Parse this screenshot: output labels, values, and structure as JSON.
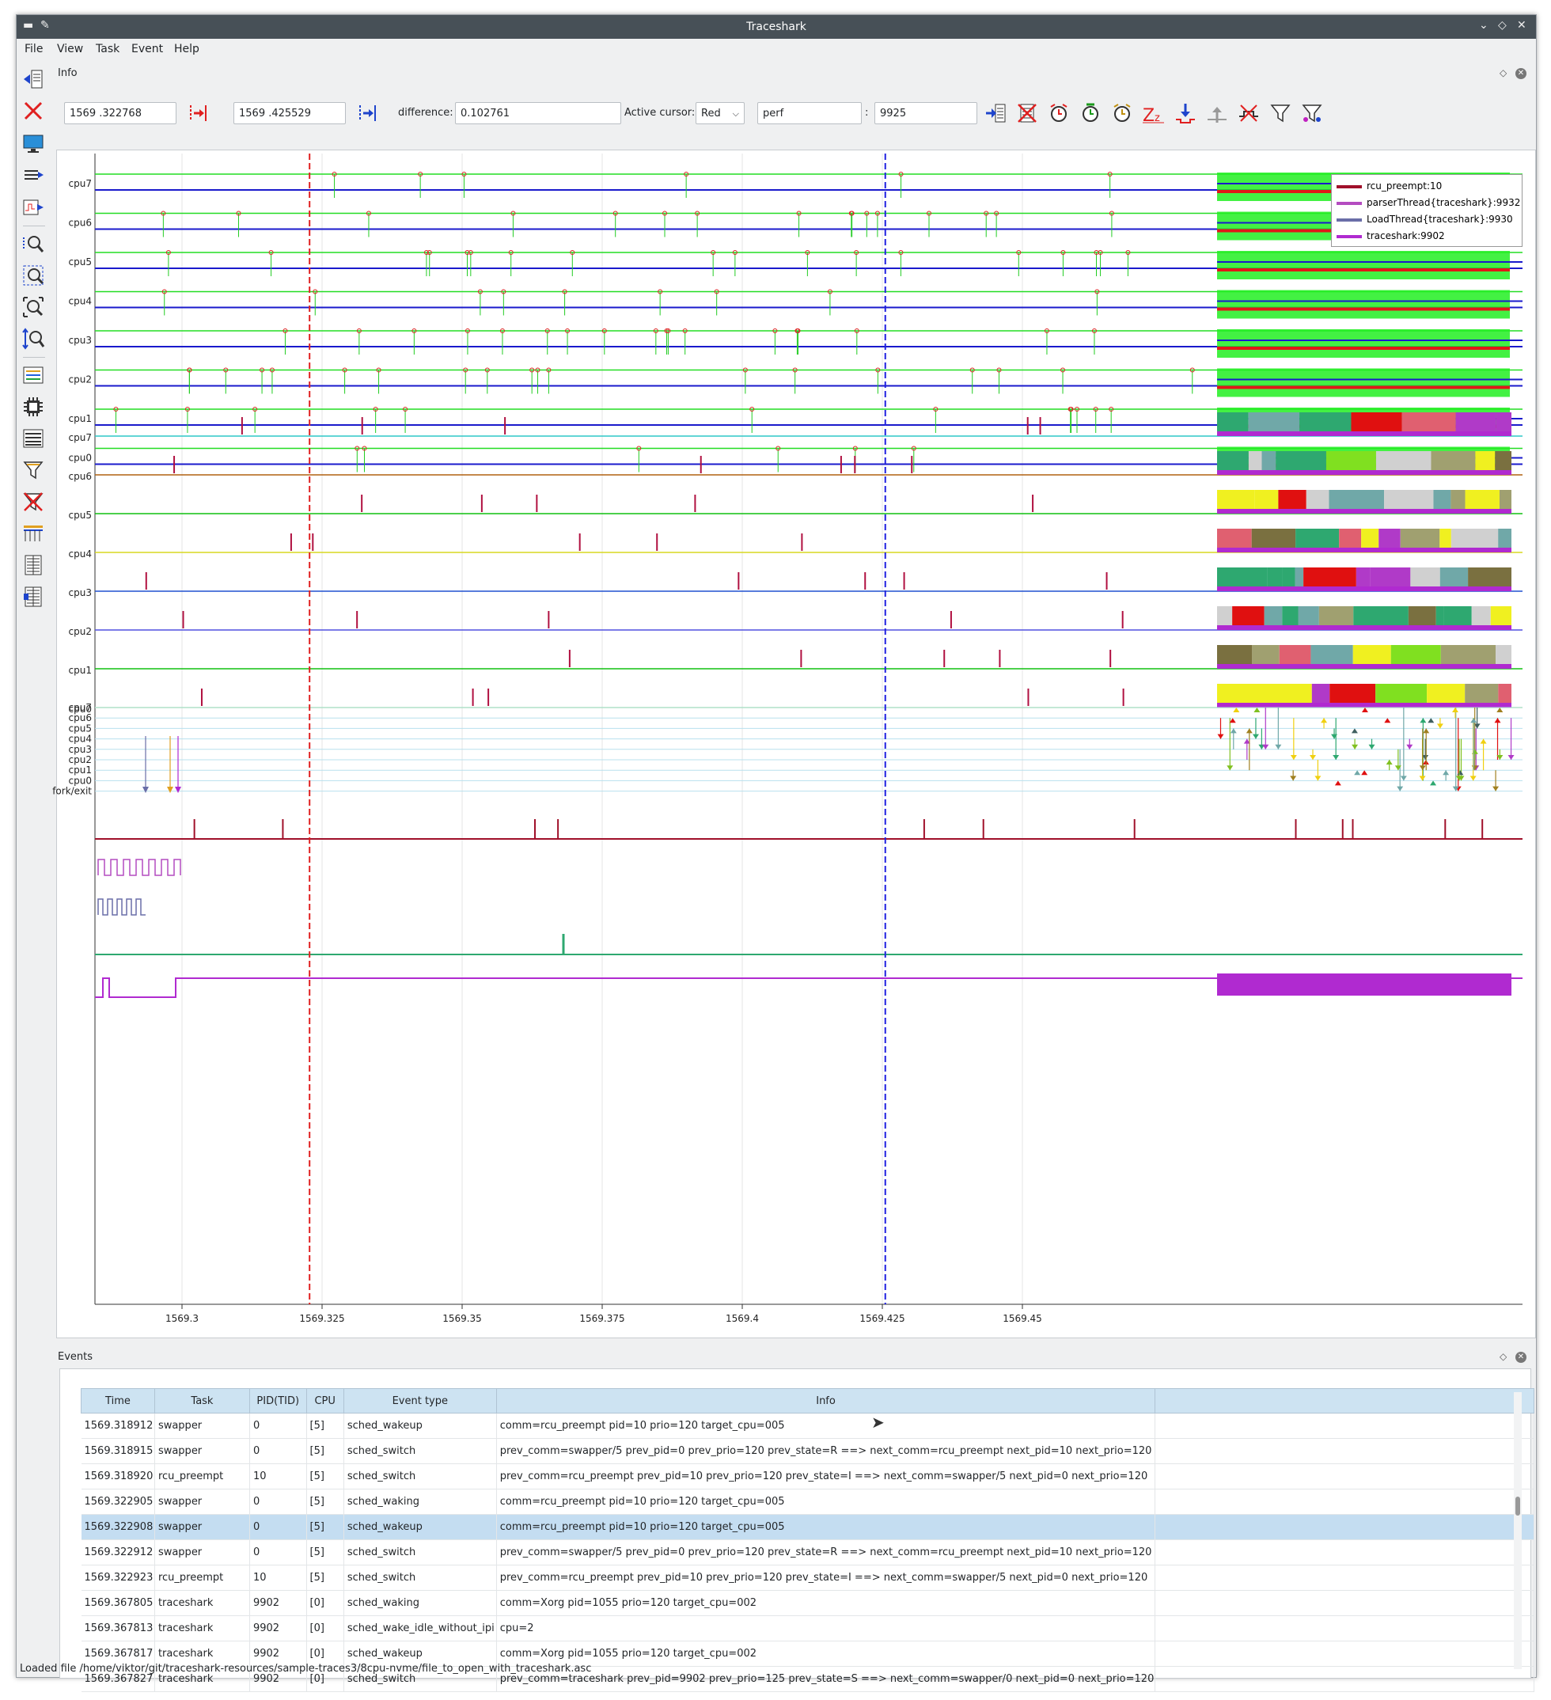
{
  "window": {
    "title": "Traceshark"
  },
  "menu": [
    "File",
    "View",
    "Task",
    "Event",
    "Help"
  ],
  "info_panel": {
    "title": "Info",
    "cursor_red_value": "1569  .322768",
    "cursor_blue_value": "1569  .425529",
    "difference_label": "difference:",
    "difference_value": "0.102761",
    "active_cursor_label": "Active cursor:",
    "active_cursor_value": "Red",
    "task_name": "perf",
    "colon": ":",
    "task_pid": "9925"
  },
  "legend": [
    {
      "label": "rcu_preempt:10",
      "color": "#a0102a"
    },
    {
      "label": "parserThread{traceshark}:9932",
      "color": "#b44cc0"
    },
    {
      "label": "LoadThread{traceshark}:9930",
      "color": "#6a6ea8"
    },
    {
      "label": "traceshark:9902",
      "color": "#b02ad0"
    }
  ],
  "chart_data": {
    "type": "timeline",
    "x_ticks": [
      "1569.3",
      "1569.325",
      "1569.35",
      "1569.375",
      "1569.4",
      "1569.425",
      "1569.45"
    ],
    "sections": {
      "frequency_cpus": [
        "cpu7",
        "cpu6",
        "cpu5",
        "cpu4",
        "cpu3",
        "cpu2",
        "cpu1",
        "cpu0"
      ],
      "scheduling_cpus": [
        "cpu7",
        "cpu6",
        "cpu5",
        "cpu4",
        "cpu3",
        "cpu2",
        "cpu1",
        "cpu0"
      ],
      "migration_rows": [
        "cpu7",
        "cpu6",
        "cpu5",
        "cpu4",
        "cpu3",
        "cpu2",
        "cpu1",
        "cpu0",
        "fork/exit"
      ]
    },
    "cursors": {
      "red": 1569.322768,
      "blue": 1569.425529
    },
    "colors": {
      "idle_green": "#22dd22",
      "freq_blue": "#1a1acc",
      "red_cursor": "#e02020",
      "blue_cursor": "#2020e0"
    }
  },
  "events_panel": {
    "title": "Events",
    "columns": [
      "Time",
      "Task",
      "PID(TID)",
      "CPU",
      "Event type",
      "Info"
    ],
    "rows": [
      [
        "1569.318912",
        "swapper",
        "0",
        "[5]",
        "sched_wakeup",
        "comm=rcu_preempt pid=10 prio=120 target_cpu=005"
      ],
      [
        "1569.318915",
        "swapper",
        "0",
        "[5]",
        "sched_switch",
        "prev_comm=swapper/5 prev_pid=0 prev_prio=120 prev_state=R ==> next_comm=rcu_preempt next_pid=10 next_prio=120"
      ],
      [
        "1569.318920",
        "rcu_preempt",
        "10",
        "[5]",
        "sched_switch",
        "prev_comm=rcu_preempt prev_pid=10 prev_prio=120 prev_state=I ==> next_comm=swapper/5 next_pid=0 next_prio=120"
      ],
      [
        "1569.322905",
        "swapper",
        "0",
        "[5]",
        "sched_waking",
        "comm=rcu_preempt pid=10 prio=120 target_cpu=005"
      ],
      [
        "1569.322908",
        "swapper",
        "0",
        "[5]",
        "sched_wakeup",
        "comm=rcu_preempt pid=10 prio=120 target_cpu=005"
      ],
      [
        "1569.322912",
        "swapper",
        "0",
        "[5]",
        "sched_switch",
        "prev_comm=swapper/5 prev_pid=0 prev_prio=120 prev_state=R ==> next_comm=rcu_preempt next_pid=10 next_prio=120"
      ],
      [
        "1569.322923",
        "rcu_preempt",
        "10",
        "[5]",
        "sched_switch",
        "prev_comm=rcu_preempt prev_pid=10 prev_prio=120 prev_state=I ==> next_comm=swapper/5 next_pid=0 next_prio=120"
      ],
      [
        "1569.367805",
        "traceshark",
        "9902",
        "[0]",
        "sched_waking",
        "comm=Xorg pid=1055 prio=120 target_cpu=002"
      ],
      [
        "1569.367813",
        "traceshark",
        "9902",
        "[0]",
        "sched_wake_idle_without_ipi",
        "cpu=2"
      ],
      [
        "1569.367817",
        "traceshark",
        "9902",
        "[0]",
        "sched_wakeup",
        "comm=Xorg pid=1055 prio=120 target_cpu=002"
      ],
      [
        "1569.367827",
        "traceshark",
        "9902",
        "[0]",
        "sched_switch",
        "prev_comm=traceshark prev_pid=9902 prev_prio=125 prev_state=S ==> next_comm=swapper/0 next_pid=0 next_prio=120"
      ]
    ],
    "selected_row": 4
  },
  "status": "Loaded file /home/viktor/git/traceshark-resources/sample-traces3/8cpu-nvme/file_to_open_with_traceshark.asc"
}
